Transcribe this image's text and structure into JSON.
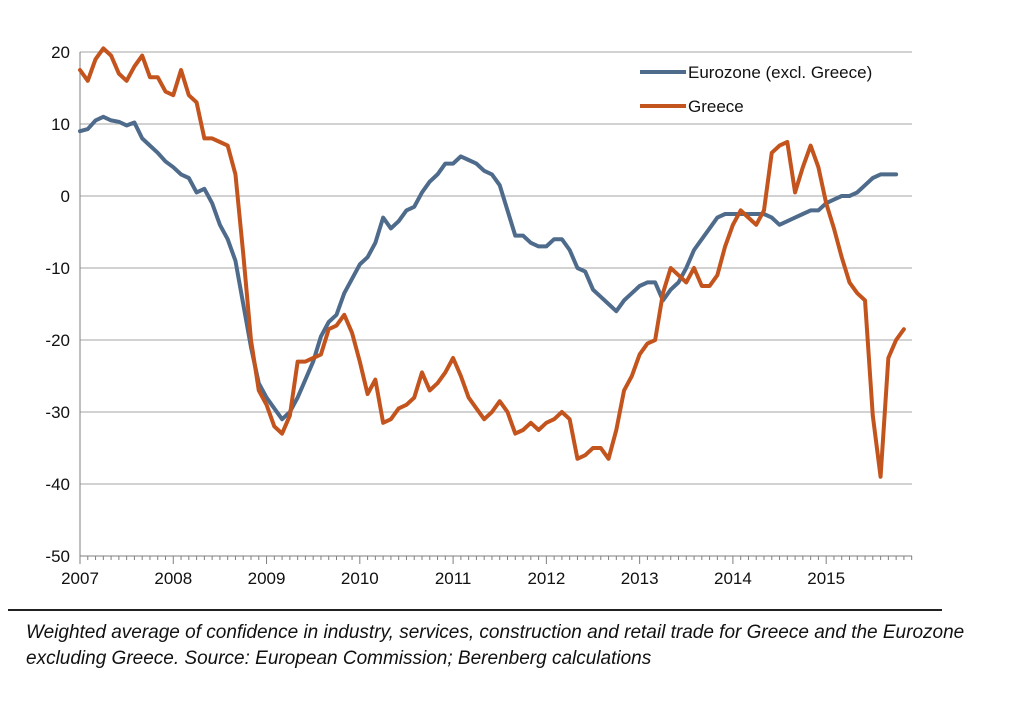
{
  "chart_data": {
    "type": "line",
    "title": "",
    "xlabel": "",
    "ylabel": "",
    "ylim": [
      -50,
      20
    ],
    "yticks": [
      20,
      10,
      0,
      -10,
      -20,
      -30,
      -40,
      -50
    ],
    "xlim": [
      2007,
      2015.92
    ],
    "xticks": [
      "2007",
      "2008",
      "2009",
      "2010",
      "2011",
      "2012",
      "2013",
      "2014",
      "2015"
    ],
    "x_start": 2007.0,
    "x_step": 0.08333,
    "legend_position": "top-right",
    "series": [
      {
        "name": "Eurozone (excl. Greece)",
        "color": "#4f6b8c",
        "values": [
          9,
          9.3,
          10.5,
          11,
          10.5,
          10.3,
          9.8,
          10.2,
          8,
          7,
          6,
          4.8,
          4,
          3,
          2.5,
          0.5,
          1,
          -1,
          -4,
          -6,
          -9,
          -15,
          -21,
          -26,
          -28,
          -29.5,
          -31,
          -30,
          -28,
          -25.5,
          -23,
          -19.5,
          -17.5,
          -16.5,
          -13.5,
          -11.5,
          -9.5,
          -8.5,
          -6.5,
          -3,
          -4.5,
          -3.5,
          -2,
          -1.5,
          0.5,
          2,
          3,
          4.5,
          4.5,
          5.5,
          5,
          4.5,
          3.5,
          3,
          1.5,
          -2,
          -5.5,
          -5.5,
          -6.5,
          -7,
          -7,
          -6,
          -6,
          -7.5,
          -10,
          -10.5,
          -13,
          -14,
          -15,
          -16,
          -14.5,
          -13.5,
          -12.5,
          -12,
          -12,
          -14.5,
          -13,
          -12,
          -10,
          -7.5,
          -6,
          -4.5,
          -3,
          -2.5,
          -2.5,
          -2.5,
          -2.5,
          -2.5,
          -2.5,
          -3,
          -4,
          -3.5,
          -3,
          -2.5,
          -2,
          -2,
          -1,
          -0.5,
          0,
          0,
          0.5,
          1.5,
          2.5,
          3,
          3,
          3
        ]
      },
      {
        "name": "Greece",
        "color": "#c4541d",
        "values": [
          17.5,
          16,
          19,
          20.5,
          19.5,
          17,
          16,
          18,
          19.5,
          16.5,
          16.5,
          14.5,
          14,
          17.5,
          14,
          13,
          8,
          8,
          7.5,
          7,
          3,
          -8,
          -20,
          -27,
          -29,
          -32,
          -33,
          -30.5,
          -23,
          -23,
          -22.5,
          -22,
          -18.5,
          -18,
          -16.5,
          -19,
          -23,
          -27.5,
          -25.5,
          -31.5,
          -31,
          -29.5,
          -29,
          -28,
          -24.5,
          -27,
          -26,
          -24.5,
          -22.5,
          -25,
          -28,
          -29.5,
          -31,
          -30,
          -28.5,
          -30,
          -33,
          -32.5,
          -31.5,
          -32.5,
          -31.5,
          -31,
          -30,
          -31,
          -36.5,
          -36,
          -35,
          -35,
          -36.5,
          -32.5,
          -27,
          -25,
          -22,
          -20.5,
          -20,
          -13.5,
          -10,
          -11,
          -12,
          -10,
          -12.5,
          -12.5,
          -11,
          -7,
          -4,
          -2,
          -3,
          -4,
          -2,
          6,
          7,
          7.5,
          0.5,
          4,
          7,
          4,
          -1,
          -4.5,
          -8.5,
          -12,
          -13.5,
          -14.5,
          -30.5,
          -39,
          -22.5,
          -20,
          -18.5
        ]
      }
    ]
  },
  "caption": "Weighted average of confidence in industry, services, construction and retail trade for Greece and the Eurozone excluding Greece. Source: European Commission; Berenberg calculations"
}
